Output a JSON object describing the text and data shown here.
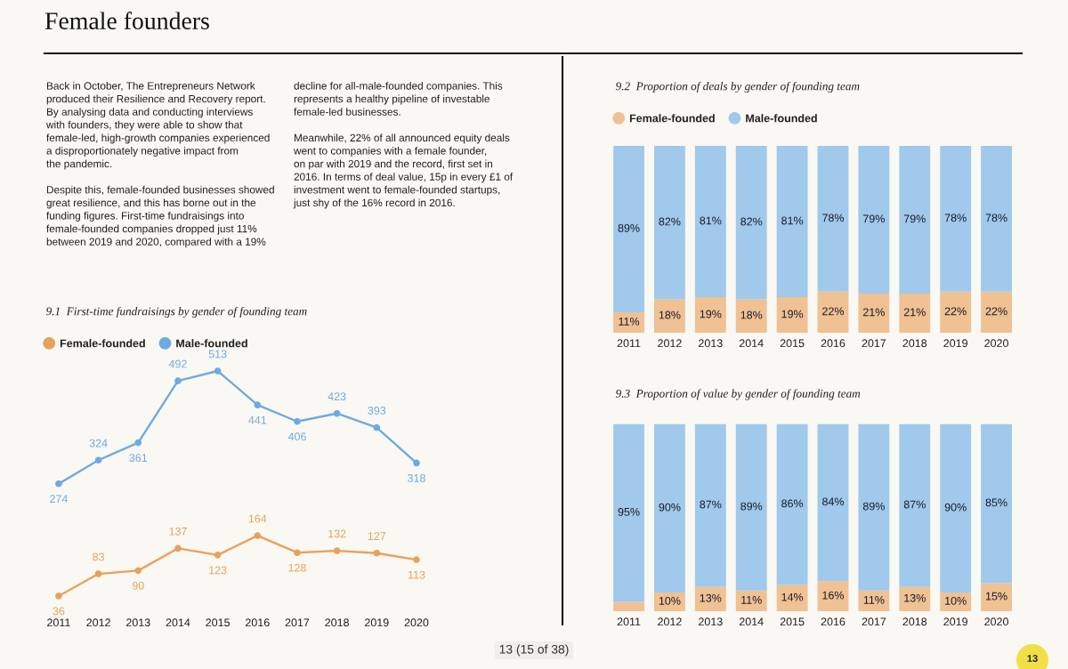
{
  "chart_data": [
    {
      "type": "other",
      "title": "Female founders",
      "annotations": [
        "Back in October, The Entrepreneurs Network\nproduced their Resilience and Recovery report.\nBy analysing data and conducting interviews\nwith founders, they were able to show that\nfemale-led, high-growth companies experienced\na disproportionately negative impact from\nthe pandemic.\n\nDespite this, female-founded businesses showed\ngreat resilience, and this has borne out in the\nfunding figures. First-time fundraisings into\nfemale-founded companies dropped just 11%\nbetween 2019 and 2020, compared with a 19%",
        "decline for all-male-founded companies. This\nrepresents a healthy pipeline of investable\nfemale-led businesses.\n\nMeanwhile, 22% of all announced equity deals\nwent to companies with a female founder,\non par with 2019 and the record, first set in\n2016. In terms of deal value, 15p in every £1 of\ninvestment went to female-founded startups,\njust shy of the 16% record in 2016.",
        "13 (15 of 38)",
        "13"
      ]
    },
    {
      "type": "line",
      "title": "9.1  First-time fundraisings by gender of founding team",
      "categories": [
        "2011",
        "2012",
        "2013",
        "2014",
        "2015",
        "2016",
        "2017",
        "2018",
        "2019",
        "2020"
      ],
      "series": [
        {
          "name": "Female-founded",
          "color": "#e8a15b",
          "values": [
            36,
            83,
            90,
            137,
            123,
            164,
            128,
            132,
            127,
            113
          ]
        },
        {
          "name": "Male-founded",
          "color": "#6eaadf",
          "values": [
            274,
            324,
            361,
            492,
            513,
            441,
            406,
            423,
            393,
            318
          ]
        }
      ],
      "data_labels": true,
      "legend": "top left",
      "marker": "circle",
      "line_style": "solid"
    },
    {
      "type": "bar",
      "stacked": true,
      "title": "9.2  Proportion of deals by gender of founding team",
      "categories": [
        "2011",
        "2012",
        "2013",
        "2014",
        "2015",
        "2016",
        "2017",
        "2018",
        "2019",
        "2020"
      ],
      "series": [
        {
          "name": "Female-founded",
          "color": "#efc193",
          "values": [
            11,
            18,
            19,
            18,
            19,
            22,
            21,
            21,
            22,
            22
          ],
          "value_labels": [
            "11%",
            "18%",
            "19%",
            "18%",
            "19%",
            "22%",
            "21%",
            "21%",
            "22%",
            "22%"
          ]
        },
        {
          "name": "Male-founded",
          "color": "#a0c9eb",
          "values": [
            89,
            82,
            81,
            82,
            81,
            78,
            79,
            79,
            78,
            78
          ],
          "value_labels": [
            "89%",
            "82%",
            "81%",
            "82%",
            "81%",
            "78%",
            "79%",
            "79%",
            "78%",
            "78%"
          ]
        }
      ],
      "legend": "top left"
    },
    {
      "type": "bar",
      "stacked": true,
      "title": "9.3  Proportion of value by gender of founding team",
      "categories": [
        "2011",
        "2012",
        "2013",
        "2014",
        "2015",
        "2016",
        "2017",
        "2018",
        "2019",
        "2020"
      ],
      "series": [
        {
          "color": "#efc193",
          "values": [
            5,
            10,
            13,
            11,
            14,
            16,
            11,
            13,
            10,
            15
          ],
          "value_labels": [
            null,
            "10%",
            "13%",
            "11%",
            "14%",
            "16%",
            "11%",
            "13%",
            "10%",
            "15%"
          ]
        },
        {
          "color": "#a0c9eb",
          "values": [
            95,
            90,
            87,
            89,
            86,
            84,
            89,
            87,
            90,
            85
          ],
          "value_labels": [
            "95%",
            "90%",
            "87%",
            "89%",
            "86%",
            "84%",
            "89%",
            "87%",
            "90%",
            "85%"
          ]
        }
      ]
    }
  ]
}
